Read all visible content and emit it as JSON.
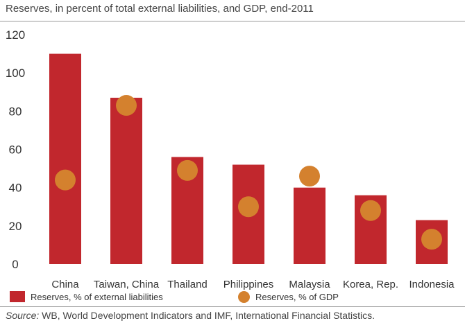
{
  "colors": {
    "bar": "#c1272d",
    "dot": "#d4812e"
  },
  "header": {
    "title": "Reserves, in percent of total external liabilities, and GDP, end-2011"
  },
  "legend": {
    "bar_label": "Reserves, % of external liabilities",
    "dot_label": "Reserves, % of GDP"
  },
  "footer": {
    "source_prefix": "Source:",
    "source_text": " WB, World Development Indicators and IMF, International Financial Statistics."
  },
  "chart_data": {
    "type": "bar",
    "title": "Reserves, in percent of total external liabilities, and GDP, end-2011",
    "xlabel": "",
    "ylabel": "",
    "ylim": [
      0,
      120
    ],
    "yticks": [
      "0",
      "20",
      "40",
      "60",
      "80",
      "100",
      "120"
    ],
    "grid": false,
    "legend_position": "bottom",
    "categories": [
      "China",
      "Taiwan, China",
      "Thailand",
      "Philippines",
      "Malaysia",
      "Korea, Rep.",
      "Indonesia"
    ],
    "series": [
      {
        "name": "Reserves, % of external liabilities",
        "mark": "bar",
        "values": [
          110,
          87,
          56,
          52,
          40,
          36,
          23
        ]
      },
      {
        "name": "Reserves, % of GDP",
        "mark": "dot",
        "values": [
          44,
          83,
          49,
          30,
          46,
          28,
          13
        ]
      }
    ]
  }
}
